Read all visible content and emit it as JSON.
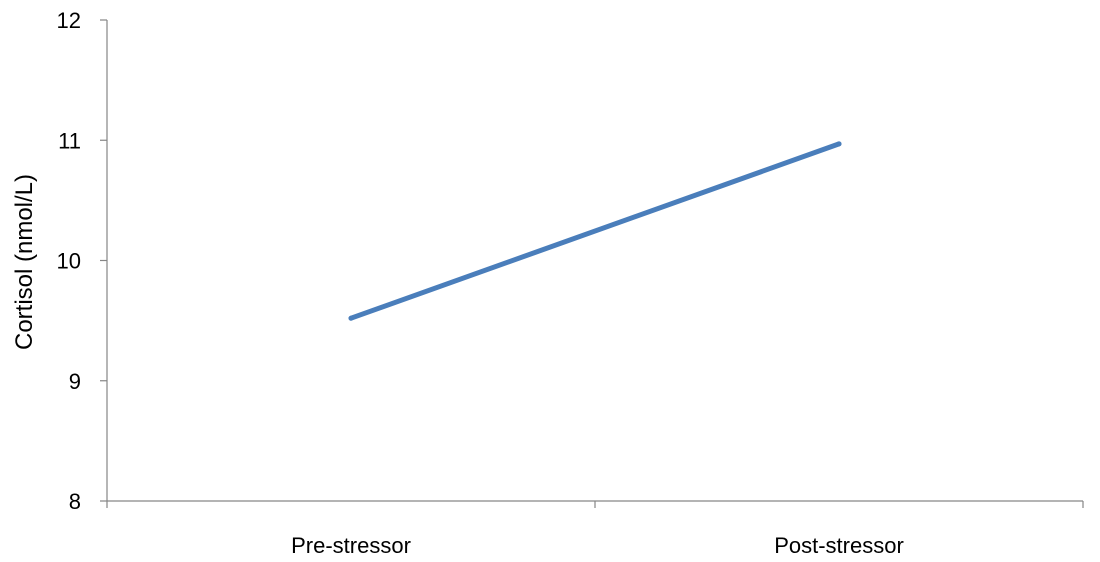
{
  "chart_data": {
    "type": "line",
    "title": "",
    "xlabel": "",
    "ylabel": "Cortisol (nmol/L)",
    "categories": [
      "Pre-stressor",
      "Post-stressor"
    ],
    "series": [
      {
        "values": [
          9.52,
          10.97
        ],
        "color": "#4a7ebb"
      }
    ],
    "ylim": [
      8,
      12
    ],
    "yticks": [
      8,
      9,
      10,
      11,
      12
    ],
    "grid": false,
    "legend": "none",
    "axis_color": "#868686"
  }
}
